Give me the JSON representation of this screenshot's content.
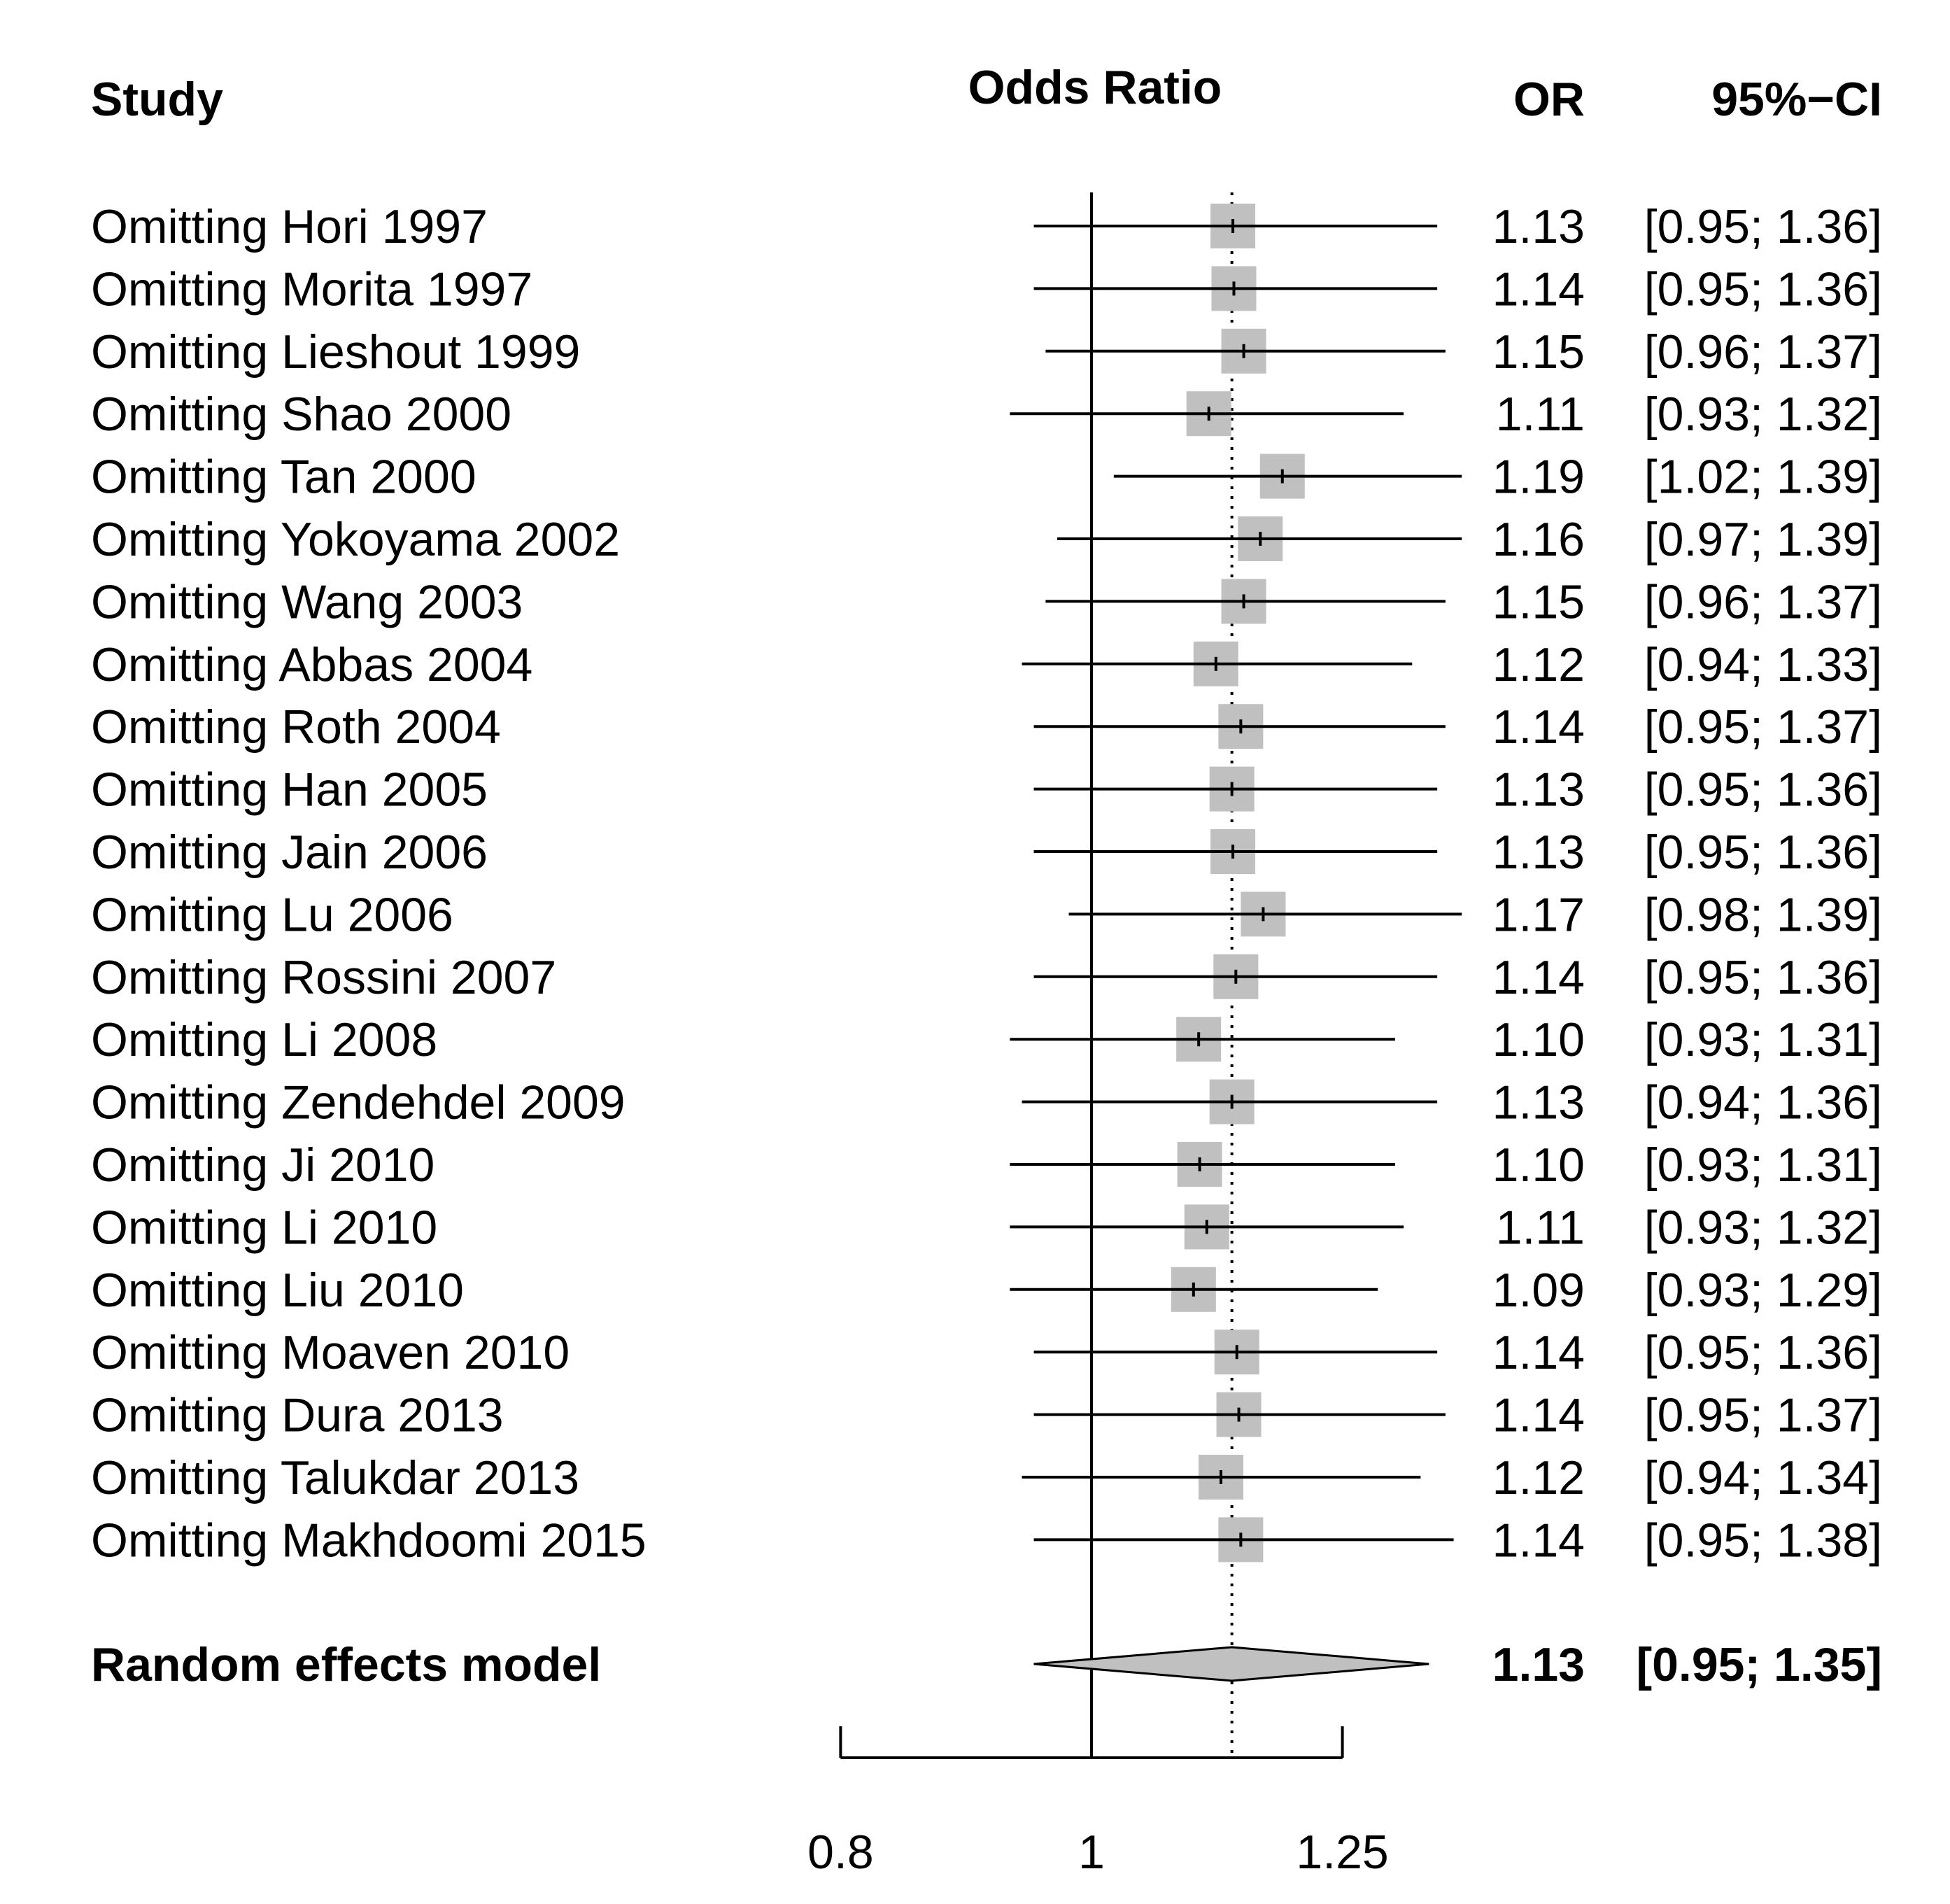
{
  "chart_data": {
    "type": "forest",
    "headers": {
      "study": "Study",
      "axis_title": "Odds Ratio",
      "or": "OR",
      "ci": "95%−CI"
    },
    "x_scale": "log",
    "x_range": [
      0.8,
      1.25
    ],
    "x_ticks": [
      {
        "value": 0.8,
        "label": "0.8"
      },
      {
        "value": 1,
        "label": "1"
      },
      {
        "value": 1.25,
        "label": "1.25"
      }
    ],
    "reference_line": 1,
    "pooled_line": 1.133,
    "studies": [
      {
        "label": "Omitting Hori 1997",
        "or": 1.134,
        "lower": 0.95,
        "upper": 1.36,
        "or_text": "1.13",
        "ci_text": "[0.95; 1.36]"
      },
      {
        "label": "Omitting Morita 1997",
        "or": 1.135,
        "lower": 0.95,
        "upper": 1.36,
        "or_text": "1.14",
        "ci_text": "[0.95; 1.36]"
      },
      {
        "label": "Omitting Lieshout 1999",
        "or": 1.145,
        "lower": 0.96,
        "upper": 1.37,
        "or_text": "1.15",
        "ci_text": "[0.96; 1.37]"
      },
      {
        "label": "Omitting Shao 2000",
        "or": 1.11,
        "lower": 0.93,
        "upper": 1.32,
        "or_text": "1.11",
        "ci_text": "[0.93; 1.32]"
      },
      {
        "label": "Omitting Tan 2000",
        "or": 1.185,
        "lower": 1.02,
        "upper": 1.39,
        "or_text": "1.19",
        "ci_text": "[1.02; 1.39]"
      },
      {
        "label": "Omitting Yokoyama 2002",
        "or": 1.162,
        "lower": 0.97,
        "upper": 1.39,
        "or_text": "1.16",
        "ci_text": "[0.97; 1.39]"
      },
      {
        "label": "Omitting Wang 2003",
        "or": 1.145,
        "lower": 0.96,
        "upper": 1.37,
        "or_text": "1.15",
        "ci_text": "[0.96; 1.37]"
      },
      {
        "label": "Omitting Abbas 2004",
        "or": 1.117,
        "lower": 0.94,
        "upper": 1.33,
        "or_text": "1.12",
        "ci_text": "[0.94; 1.33]"
      },
      {
        "label": "Omitting Roth 2004",
        "or": 1.142,
        "lower": 0.95,
        "upper": 1.37,
        "or_text": "1.14",
        "ci_text": "[0.95; 1.37]"
      },
      {
        "label": "Omitting Han 2005",
        "or": 1.133,
        "lower": 0.95,
        "upper": 1.36,
        "or_text": "1.13",
        "ci_text": "[0.95; 1.36]"
      },
      {
        "label": "Omitting Jain 2006",
        "or": 1.134,
        "lower": 0.95,
        "upper": 1.36,
        "or_text": "1.13",
        "ci_text": "[0.95; 1.36]"
      },
      {
        "label": "Omitting Lu 2006",
        "or": 1.165,
        "lower": 0.98,
        "upper": 1.39,
        "or_text": "1.17",
        "ci_text": "[0.98; 1.39]"
      },
      {
        "label": "Omitting Rossini 2007",
        "or": 1.137,
        "lower": 0.95,
        "upper": 1.36,
        "or_text": "1.14",
        "ci_text": "[0.95; 1.36]"
      },
      {
        "label": "Omitting Li 2008",
        "or": 1.1,
        "lower": 0.93,
        "upper": 1.31,
        "or_text": "1.10",
        "ci_text": "[0.93; 1.31]"
      },
      {
        "label": "Omitting Zendehdel 2009",
        "or": 1.133,
        "lower": 0.94,
        "upper": 1.36,
        "or_text": "1.13",
        "ci_text": "[0.94; 1.36]"
      },
      {
        "label": "Omitting Ji 2010",
        "or": 1.101,
        "lower": 0.93,
        "upper": 1.31,
        "or_text": "1.10",
        "ci_text": "[0.93; 1.31]"
      },
      {
        "label": "Omitting Li 2010",
        "or": 1.108,
        "lower": 0.93,
        "upper": 1.32,
        "or_text": "1.11",
        "ci_text": "[0.93; 1.32]"
      },
      {
        "label": "Omitting Liu 2010",
        "or": 1.095,
        "lower": 0.93,
        "upper": 1.29,
        "or_text": "1.09",
        "ci_text": "[0.93; 1.29]"
      },
      {
        "label": "Omitting Moaven 2010",
        "or": 1.138,
        "lower": 0.95,
        "upper": 1.36,
        "or_text": "1.14",
        "ci_text": "[0.95; 1.36]"
      },
      {
        "label": "Omitting Dura 2013",
        "or": 1.14,
        "lower": 0.95,
        "upper": 1.37,
        "or_text": "1.14",
        "ci_text": "[0.95; 1.37]"
      },
      {
        "label": "Omitting Talukdar 2013",
        "or": 1.122,
        "lower": 0.94,
        "upper": 1.34,
        "or_text": "1.12",
        "ci_text": "[0.94; 1.34]"
      },
      {
        "label": "Omitting Makhdoomi 2015",
        "or": 1.142,
        "lower": 0.95,
        "upper": 1.38,
        "or_text": "1.14",
        "ci_text": "[0.95; 1.38]"
      }
    ],
    "summary": {
      "label": "Random effects model",
      "or": 1.133,
      "lower": 0.95,
      "upper": 1.35,
      "or_text": "1.13",
      "ci_text": "[0.95; 1.35]"
    },
    "colors": {
      "box": "#c0c0c0",
      "diamond": "#c0c0c0",
      "line": "#000000"
    }
  }
}
